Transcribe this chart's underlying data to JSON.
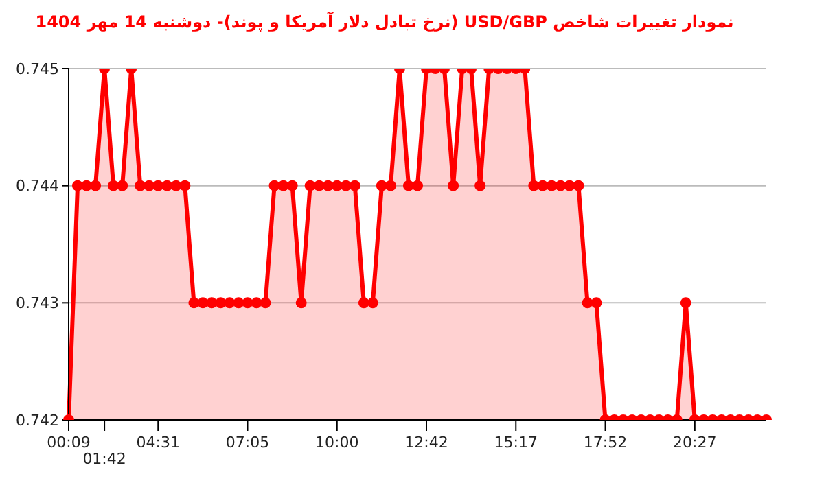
{
  "chart_data": {
    "type": "area",
    "title": "نمودار تغییرات شاخص USD/GBP (نرخ تبادل دلار آمریکا و پوند)- دوشنبه  14 مهر 1404",
    "categories": [
      "00:09",
      null,
      null,
      null,
      "01:42",
      null,
      null,
      null,
      null,
      null,
      "04:31",
      null,
      null,
      null,
      null,
      null,
      null,
      null,
      null,
      null,
      "07:05",
      null,
      null,
      null,
      null,
      null,
      null,
      null,
      null,
      null,
      "10:00",
      null,
      null,
      null,
      null,
      null,
      null,
      null,
      null,
      null,
      "12:42",
      null,
      null,
      null,
      null,
      null,
      null,
      null,
      null,
      null,
      "15:17",
      null,
      null,
      null,
      null,
      null,
      null,
      null,
      null,
      null,
      "17:52",
      null,
      null,
      null,
      null,
      null,
      null,
      null,
      null,
      null,
      "20:27",
      null,
      null,
      null,
      null,
      null,
      null,
      null,
      null
    ],
    "series": [
      {
        "color": "#ff0000",
        "values": [
          0.742,
          0.744,
          0.744,
          0.744,
          0.745,
          0.744,
          0.744,
          0.745,
          0.744,
          0.744,
          0.744,
          0.744,
          0.744,
          0.744,
          0.743,
          0.743,
          0.743,
          0.743,
          0.743,
          0.743,
          0.743,
          0.743,
          0.743,
          0.744,
          0.744,
          0.744,
          0.743,
          0.744,
          0.744,
          0.744,
          0.744,
          0.744,
          0.744,
          0.743,
          0.743,
          0.744,
          0.744,
          0.745,
          0.744,
          0.744,
          0.745,
          0.745,
          0.745,
          0.744,
          0.745,
          0.745,
          0.744,
          0.745,
          0.745,
          0.745,
          0.745,
          0.745,
          0.744,
          0.744,
          0.744,
          0.744,
          0.744,
          0.744,
          0.743,
          0.743,
          0.742,
          0.742,
          0.742,
          0.742,
          0.742,
          0.742,
          0.742,
          0.742,
          0.742,
          0.743,
          0.742,
          0.742,
          0.742,
          0.742,
          0.742,
          0.742,
          0.742,
          0.742,
          0.742
        ]
      }
    ],
    "ylim": [
      0.742,
      0.745
    ],
    "yticks": [
      0.742,
      0.743,
      0.744,
      0.745
    ],
    "grid": "y",
    "marker": "circle"
  }
}
